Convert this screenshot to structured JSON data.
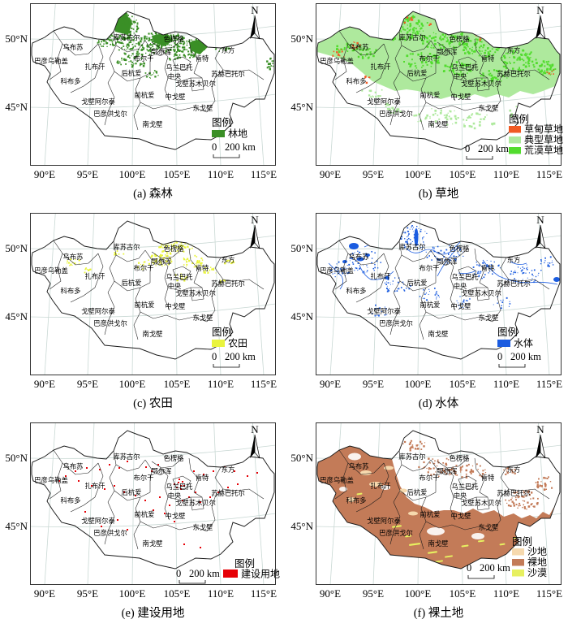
{
  "figure": {
    "compass_label": "N",
    "legend_title": "图例",
    "scale_bar": {
      "zero": "0",
      "label": "200 km"
    },
    "axis": {
      "lat_ticks": [
        "50°N",
        "45°N"
      ],
      "lon_ticks": [
        "90°E",
        "95°E",
        "100°E",
        "105°E",
        "110°E",
        "115°E"
      ]
    },
    "provinces": [
      "乌布苏",
      "巴彦乌勒盖",
      "库苏古尔",
      "色楞格",
      "鄂尔浑",
      "布尔干",
      "乌兰巴托",
      "肯特",
      "东方",
      "扎布汗",
      "后杭爱",
      "中央",
      "苏赫巴托尔",
      "科布多",
      "戈壁苏木贝尔",
      "前杭爱",
      "中戈壁",
      "戈壁阿尔泰",
      "巴彦洪戈尔",
      "东戈壁",
      "南戈壁"
    ],
    "panels": [
      {
        "id": "a",
        "caption": "(a) 森林",
        "legend": [
          {
            "label": "林地",
            "color": "#3a8f26"
          }
        ]
      },
      {
        "id": "b",
        "caption": "(b) 草地",
        "legend": [
          {
            "label": "草甸草地",
            "color": "#f15a24"
          },
          {
            "label": "典型草地",
            "color": "#aee99d"
          },
          {
            "label": "荒漠草地",
            "color": "#52dc2e"
          }
        ]
      },
      {
        "id": "c",
        "caption": "(c) 农田",
        "legend": [
          {
            "label": "农田",
            "color": "#e9f43e"
          }
        ]
      },
      {
        "id": "d",
        "caption": "(d) 水体",
        "legend": [
          {
            "label": "水体",
            "color": "#1b5ce0"
          }
        ]
      },
      {
        "id": "e",
        "caption": "(e) 建设用地",
        "legend": [
          {
            "label": "建设用地",
            "color": "#e60006"
          }
        ]
      },
      {
        "id": "f",
        "caption": "(f) 裸土地",
        "legend": [
          {
            "label": "沙地",
            "color": "#f6d9ae"
          },
          {
            "label": "裸地",
            "color": "#c37b58"
          },
          {
            "label": "沙漠",
            "color": "#e7f060"
          }
        ]
      }
    ]
  }
}
